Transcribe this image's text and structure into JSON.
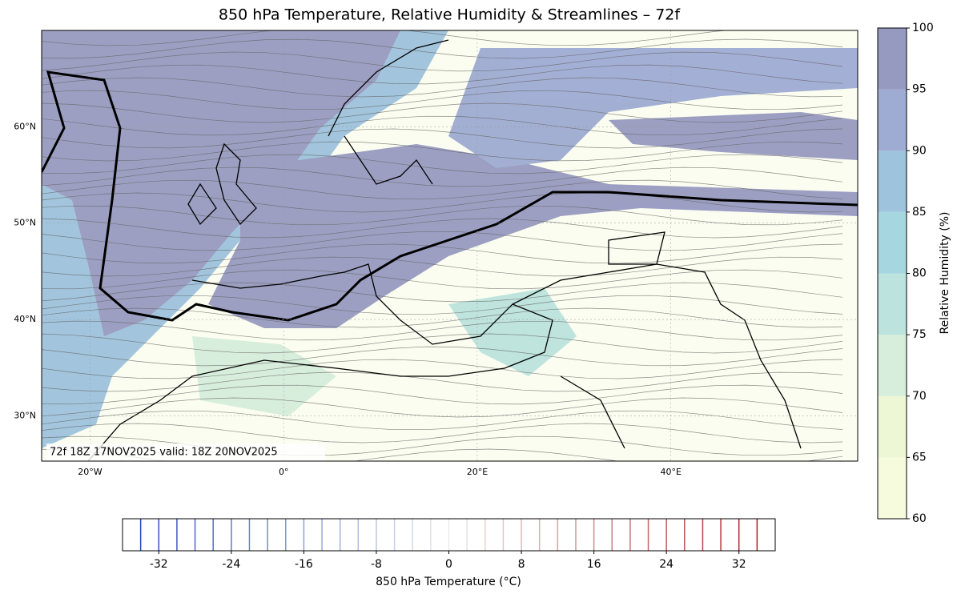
{
  "title": "850 hPa Temperature, Relative Humidity & Streamlines – 72f",
  "map": {
    "annotation": "72f 18Z 17NOV2025 valid: 18Z 20NOV2025",
    "lonlim": [
      -25,
      59.3
    ],
    "latlim": [
      25.3,
      70
    ],
    "lon_ticks": [
      {
        "value": -20,
        "label": "20°W"
      },
      {
        "value": 0,
        "label": "0°"
      },
      {
        "value": 20,
        "label": "20°E"
      },
      {
        "value": 40,
        "label": "40°E"
      }
    ],
    "lat_ticks": [
      {
        "value": 60,
        "label": "60°N"
      },
      {
        "value": 50,
        "label": "50°N"
      },
      {
        "value": 40,
        "label": "40°N"
      },
      {
        "value": 30,
        "label": "30°N"
      }
    ]
  },
  "humidity_colorbar": {
    "label": "Relative Humidity (%)",
    "range": [
      60,
      100
    ],
    "ticks": [
      60,
      65,
      70,
      75,
      80,
      85,
      90,
      95,
      100
    ],
    "colors": [
      "#f7fbdd",
      "#edf6d5",
      "#d6eedb",
      "#bce3dd",
      "#a6d7e0",
      "#9ec3dc",
      "#9eabd2",
      "#979ac0"
    ]
  },
  "temperature_colorbar": {
    "label": "850 hPa Temperature (°C)",
    "range": [
      -36,
      36
    ],
    "ticks": [
      -32,
      -24,
      -16,
      -8,
      0,
      8,
      16,
      24,
      32
    ],
    "levels": [
      -34,
      -32,
      -30,
      -28,
      -26,
      -24,
      -22,
      -20,
      -18,
      -16,
      -14,
      -12,
      -10,
      -8,
      -6,
      -4,
      -2,
      0,
      2,
      4,
      6,
      8,
      10,
      12,
      14,
      16,
      18,
      20,
      22,
      24,
      26,
      28,
      30,
      32,
      34
    ]
  }
}
